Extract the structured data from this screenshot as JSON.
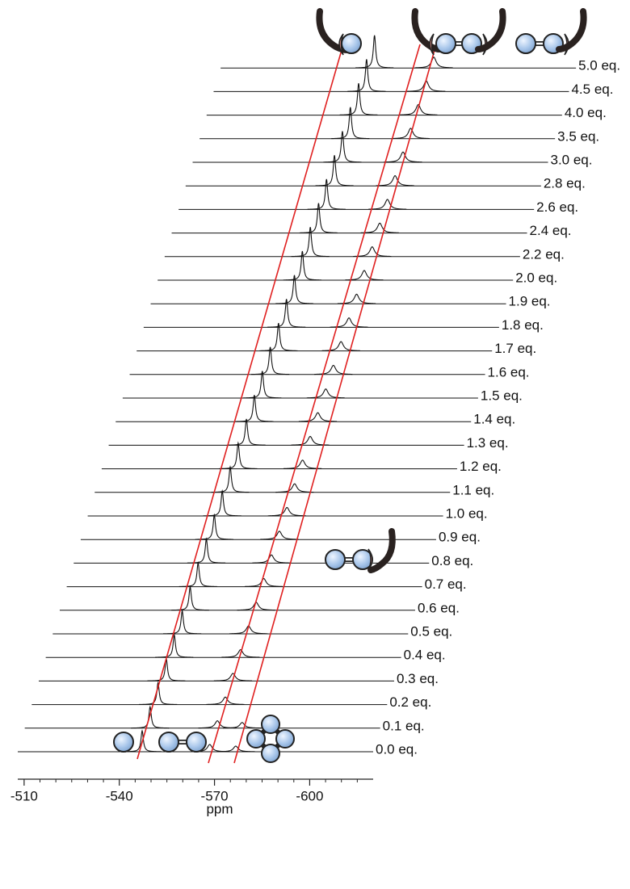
{
  "chart_data": {
    "type": "stacked-spectra",
    "xlabel": "ppm",
    "xlim": [
      -508,
      -620
    ],
    "xticks": [
      -510,
      -540,
      -570,
      -600
    ],
    "xminorticks": [
      -515,
      -520,
      -525,
      -530,
      -535,
      -545,
      -550,
      -555,
      -560,
      -565,
      -575,
      -580,
      -585,
      -590,
      -595,
      -605,
      -610,
      -615
    ],
    "series": [
      {
        "name": "0.0 eq.",
        "peaks": [
          -547.2,
          -568.5,
          -576.7
        ]
      },
      {
        "name": "0.1 eq.",
        "peaks": [
          -547.5,
          -568.7,
          -576.5
        ]
      },
      {
        "name": "0.2 eq.",
        "peaks": [
          -547.8,
          -569.0
        ]
      },
      {
        "name": "0.3 eq.",
        "peaks": [
          -548.2,
          -569.2
        ]
      },
      {
        "name": "0.4 eq.",
        "peaks": [
          -548.5,
          -569.4
        ]
      },
      {
        "name": "0.5 eq.",
        "peaks": [
          -548.8,
          -569.7
        ]
      },
      {
        "name": "0.6 eq.",
        "peaks": [
          -549.1,
          -569.9
        ]
      },
      {
        "name": "0.7 eq.",
        "peaks": [
          -549.4,
          -570.1
        ]
      },
      {
        "name": "0.8 eq.",
        "peaks": [
          -549.8,
          -570.3
        ]
      },
      {
        "name": "0.9 eq.",
        "peaks": [
          -550.1,
          -570.6
        ]
      },
      {
        "name": "1.0 eq.",
        "peaks": [
          -550.4,
          -570.8
        ]
      },
      {
        "name": "1.1 eq.",
        "peaks": [
          -550.7,
          -571.0
        ]
      },
      {
        "name": "1.2 eq.",
        "peaks": [
          -551.0,
          -571.3
        ]
      },
      {
        "name": "1.3 eq.",
        "peaks": [
          -551.4,
          -571.5
        ]
      },
      {
        "name": "1.4 eq.",
        "peaks": [
          -551.7,
          -571.7
        ]
      },
      {
        "name": "1.5 eq.",
        "peaks": [
          -552.0,
          -572.0
        ]
      },
      {
        "name": "1.6 eq.",
        "peaks": [
          -552.3,
          -572.2
        ]
      },
      {
        "name": "1.7 eq.",
        "peaks": [
          -552.7,
          -572.4
        ]
      },
      {
        "name": "1.8 eq.",
        "peaks": [
          -553.0,
          -572.7
        ]
      },
      {
        "name": "1.9 eq.",
        "peaks": [
          -553.3,
          -572.9
        ]
      },
      {
        "name": "2.0 eq.",
        "peaks": [
          -553.6,
          -573.1
        ]
      },
      {
        "name": "2.2 eq.",
        "peaks": [
          -553.9,
          -573.4
        ]
      },
      {
        "name": "2.4 eq.",
        "peaks": [
          -554.3,
          -573.6
        ]
      },
      {
        "name": "2.6 eq.",
        "peaks": [
          -554.6,
          -573.8
        ]
      },
      {
        "name": "2.8 eq.",
        "peaks": [
          -554.9,
          -574.0
        ]
      },
      {
        "name": "3.0 eq.",
        "peaks": [
          -555.2,
          -574.3
        ]
      },
      {
        "name": "3.5 eq.",
        "peaks": [
          -555.5,
          -574.5
        ]
      },
      {
        "name": "4.0 eq.",
        "peaks": [
          -555.9,
          -574.7
        ]
      },
      {
        "name": "4.5 eq.",
        "peaks": [
          -556.2,
          -575.0
        ]
      },
      {
        "name": "5.0 eq.",
        "peaks": [
          -556.5,
          -575.2
        ]
      }
    ]
  }
}
